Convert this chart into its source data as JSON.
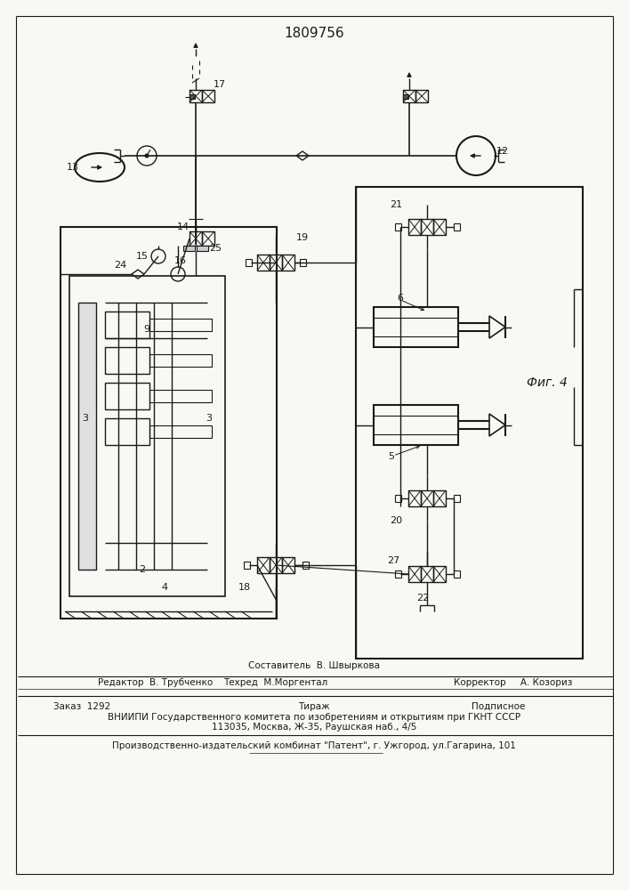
{
  "title": "1809756",
  "fig_label": "Фиг. 4",
  "bg_color": "#f8f8f5",
  "line_color": "#1a1a1a",
  "editor_line": "Редактор  В. Трубченко",
  "composer_line1": "Составитель  В. Швыркова",
  "composer_line2": "Техред  М.Моргентал",
  "corrector_line": "Корректор     А. Козориз",
  "order_line": "Заказ  1292",
  "tirazh_line": "Тираж",
  "podpisnoe_line": "Подписное",
  "vniiipi_line": "ВНИИПИ Государственного комитета по изобретениям и открытиям при ГКНТ СССР",
  "address_line": "113035, Москва, Ж-35, Раушская наб., 4/5",
  "factory_line": "Производственно-издательский комбинат \"Патент\", г. Ужгород, ул.Гагарина, 101"
}
